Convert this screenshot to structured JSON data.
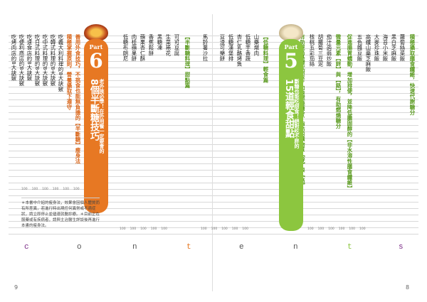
{
  "colors": {
    "green": "#8cc63f",
    "orange": "#e77823",
    "accent": "#7a2a86"
  },
  "part5": {
    "part_label": "Part",
    "number": "5",
    "tagline": "斷糖也能吃甜食！絕對吃不胖的",
    "title": "15道輕食甜點"
  },
  "part6": {
    "part_label": "Part",
    "number": "6",
    "tagline": "老外族必學！在外用餐一定要會的",
    "title": "8個半斷糖技巧"
  },
  "right_page": {
    "sections": [
      {
        "heading": "積極攝取膳食纖維，快速代謝糖分",
        "items": [
          "蘿蔔絲菜飯",
          "黑白芝麻飯",
          "海苔小米飯",
          "大麥珍珠飯",
          "高纖山藥芝麻飯",
          "五色雜豆飯"
        ]
      },
      {
        "heading": "促進腸胃蠕動，增加排便，並降低膽固醇的【非水溶性膳食纖維】",
        "items": []
      },
      {
        "heading": "微量元素【鋅】與【鉻】，有助燃燒糖分",
        "items": [
          "茄汁蒟蒻炒飯",
          "胡蘿蔔三豆泥",
          "核桃五彩茄絲",
          "青醬鮭魚義大利麵"
        ]
      },
      {
        "heading": "有助提高基礎代謝率，加速燃燒糖分、脂肪的礦物質【鋅】與【鉻】",
        "items": []
      }
    ],
    "page_number": "8"
  },
  "middle": {
    "left_items": [
      "山藥燉肉",
      "低糖芋香蔬",
      "杏仁乳酪烤魚",
      "低糖漢堡排",
      "豆渣可樂餅",
      "馬鈴薯沙拉"
    ],
    "heading_light": "【低糖料理】輕食篇",
    "heading_dessert": "【半斷糖料理】甜點篇",
    "dessert_items": [
      "可可豆腐",
      "生菜捲花",
      "黑糖凍",
      "香蕉鬆餅",
      "蘋果杏仁酥",
      "肉桂蘋果餅",
      "低糖布朗尼"
    ]
  },
  "left_page": {
    "headings": [
      "善用外食技巧，不挑食也能無負擔的【半斷糖】瘦身法",
      "積極掌握原則，營養攝取下遵守"
    ],
    "items": [
      "吃義大利料理的8大訣竅",
      "吃韓式料理的8大訣竅",
      "吃中式料理的8大訣竅",
      "吃日式料理的8大訣竅",
      "吃速食店的8大訣竅",
      "吃便利商店的8大訣竅",
      "吃烤肉店的8大訣竅"
    ],
    "note": "＊本書中介紹的瘦身法，效果會因個人體質而有所差異，若進行時出現任何異常或不適症狀，請立即停止並儘速就醫診療。＊目前正在服藥或有疾病者，請與主治醫生詳談後再進行本書的瘦身法。",
    "page_number": "9"
  },
  "contents_word": [
    "c",
    "o",
    "n",
    "t",
    "e",
    "n",
    "t",
    "s"
  ],
  "page_labels": {
    "p100": "100"
  }
}
